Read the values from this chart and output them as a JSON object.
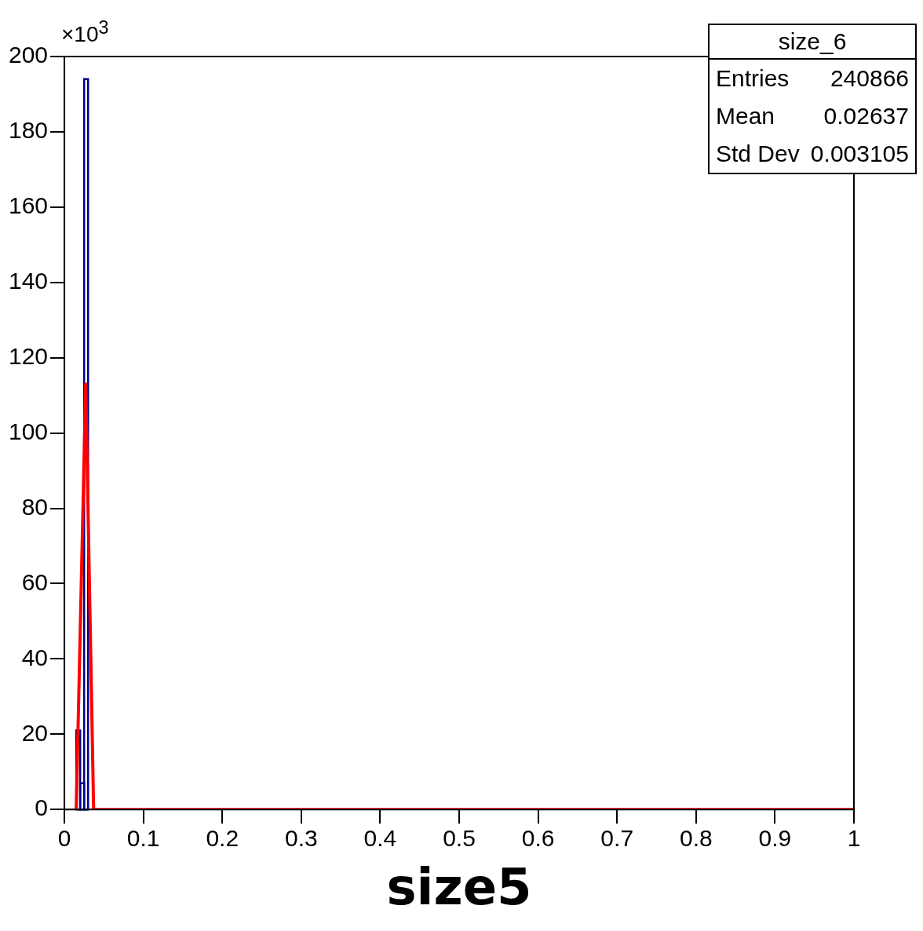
{
  "chart_data": {
    "type": "histogram",
    "title": "size_6",
    "xlabel": "size5",
    "annotations": [
      "×10$^{3}$",
      "Entries",
      "240866",
      "Mean",
      "0.02637",
      "Std Dev",
      "0.003105"
    ],
    "series": [
      {
        "color": "#00008b",
        "bins": [
          0.015,
          0.02,
          0.025,
          0.03
        ],
        "values": [
          21,
          7,
          194
        ]
      },
      {
        "type": "line",
        "color": "#ff0000",
        "x": [
          0.015,
          0.027,
          0.037,
          1.0
        ],
        "values": [
          0,
          113,
          0,
          0
        ]
      }
    ],
    "xlim": [
      0,
      1
    ],
    "xticks": [
      0,
      0.1,
      0.2,
      0.3,
      0.4,
      0.5,
      0.6,
      0.7,
      0.8,
      0.9,
      1
    ],
    "ylim": [
      0,
      200
    ],
    "yticks": [
      0,
      20,
      40,
      60,
      80,
      100,
      120,
      140,
      160,
      180,
      200
    ],
    "grid": false,
    "legend": false
  }
}
